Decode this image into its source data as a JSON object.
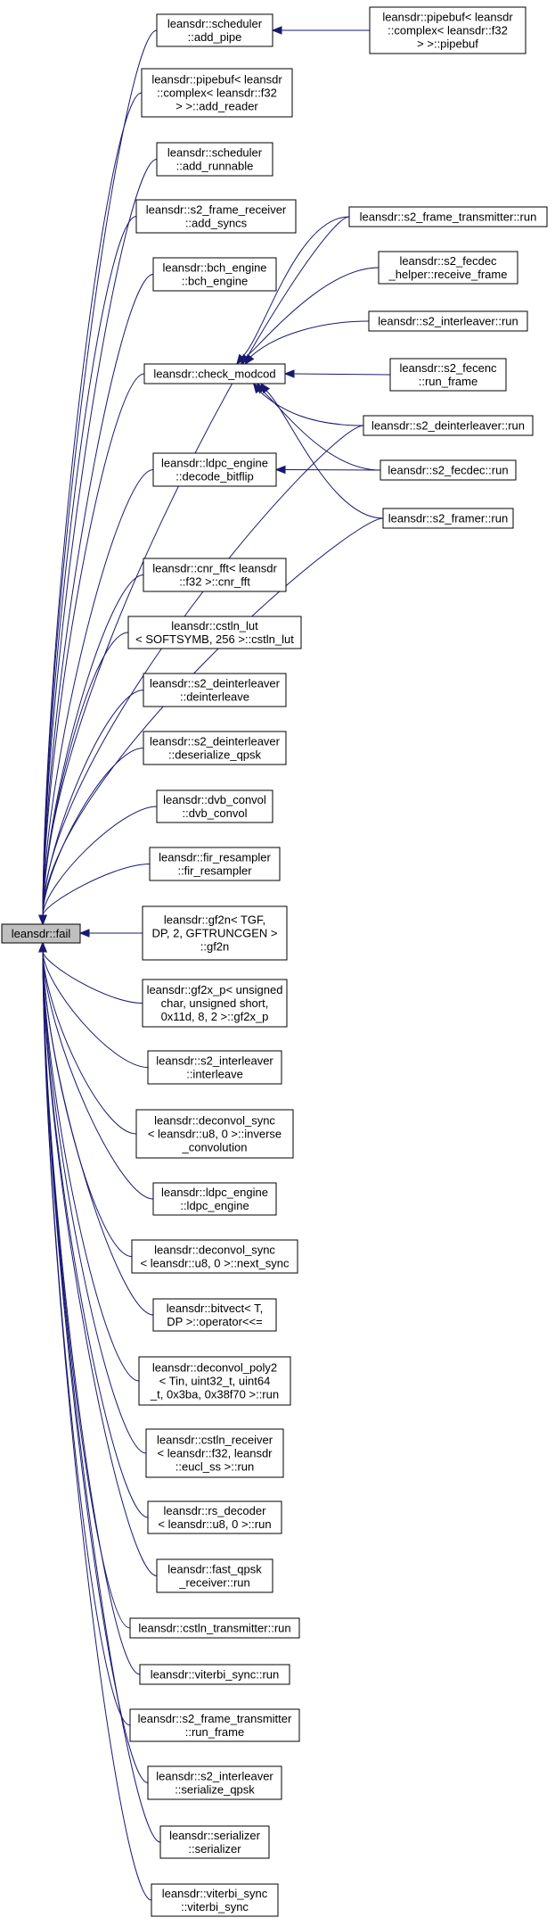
{
  "graph": {
    "root": {
      "id": "fail",
      "label": [
        "leansdr::fail"
      ]
    },
    "nodes": [
      {
        "id": "add_pipe",
        "label": [
          "leansdr::scheduler",
          "::add_pipe"
        ]
      },
      {
        "id": "pipebuf_pipebuf",
        "label": [
          "leansdr::pipebuf< leansdr",
          "::complex< leansdr::f32",
          "> >::pipebuf"
        ]
      },
      {
        "id": "add_reader",
        "label": [
          "leansdr::pipebuf< leansdr",
          "::complex< leansdr::f32",
          "> >::add_reader"
        ]
      },
      {
        "id": "add_runnable",
        "label": [
          "leansdr::scheduler",
          "::add_runnable"
        ]
      },
      {
        "id": "add_syncs",
        "label": [
          "leansdr::s2_frame_receiver",
          "::add_syncs"
        ]
      },
      {
        "id": "s2ft_run",
        "label": [
          "leansdr::s2_frame_transmitter::run"
        ]
      },
      {
        "id": "bch_engine",
        "label": [
          "leansdr::bch_engine",
          "::bch_engine"
        ]
      },
      {
        "id": "s2_fecdec_helper",
        "label": [
          "leansdr::s2_fecdec",
          "_helper::receive_frame"
        ]
      },
      {
        "id": "s2_interleaver_run",
        "label": [
          "leansdr::s2_interleaver::run"
        ]
      },
      {
        "id": "check_modcod",
        "label": [
          "leansdr::check_modcod"
        ]
      },
      {
        "id": "s2_fecenc",
        "label": [
          "leansdr::s2_fecenc",
          "::run_frame"
        ]
      },
      {
        "id": "s2_deinterleaver_run",
        "label": [
          "leansdr::s2_deinterleaver::run"
        ]
      },
      {
        "id": "decode_bitflip",
        "label": [
          "leansdr::ldpc_engine",
          "::decode_bitflip"
        ]
      },
      {
        "id": "s2_fecdec_run",
        "label": [
          "leansdr::s2_fecdec::run"
        ]
      },
      {
        "id": "s2_framer_run",
        "label": [
          "leansdr::s2_framer::run"
        ]
      },
      {
        "id": "cnr_fft",
        "label": [
          "leansdr::cnr_fft< leansdr",
          "::f32 >::cnr_fft"
        ]
      },
      {
        "id": "cstln_lut",
        "label": [
          "leansdr::cstln_lut",
          "< SOFTSYMB, 256 >::cstln_lut"
        ]
      },
      {
        "id": "deinterleave",
        "label": [
          "leansdr::s2_deinterleaver",
          "::deinterleave"
        ]
      },
      {
        "id": "deserialize_qpsk",
        "label": [
          "leansdr::s2_deinterleaver",
          "::deserialize_qpsk"
        ]
      },
      {
        "id": "dvb_convol",
        "label": [
          "leansdr::dvb_convol",
          "::dvb_convol"
        ]
      },
      {
        "id": "fir_resampler",
        "label": [
          "leansdr::fir_resampler",
          "::fir_resampler"
        ]
      },
      {
        "id": "gf2n",
        "label": [
          "leansdr::gf2n< TGF,",
          "DP, 2, GFTRUNCGEN >",
          "::gf2n"
        ]
      },
      {
        "id": "gf2x_p",
        "label": [
          "leansdr::gf2x_p< unsigned",
          "char, unsigned short,",
          "0x11d, 8, 2 >::gf2x_p"
        ]
      },
      {
        "id": "interleave",
        "label": [
          "leansdr::s2_interleaver",
          "::interleave"
        ]
      },
      {
        "id": "inverse_convolution",
        "label": [
          "leansdr::deconvol_sync",
          "< leansdr::u8, 0 >::inverse",
          "_convolution"
        ]
      },
      {
        "id": "ldpc_engine",
        "label": [
          "leansdr::ldpc_engine",
          "::ldpc_engine"
        ]
      },
      {
        "id": "next_sync",
        "label": [
          "leansdr::deconvol_sync",
          "< leansdr::u8, 0 >::next_sync"
        ]
      },
      {
        "id": "bitvect_op",
        "label": [
          "leansdr::bitvect< T,",
          "DP >::operator<<="
        ]
      },
      {
        "id": "deconvol_poly2",
        "label": [
          "leansdr::deconvol_poly2",
          "< Tin, uint32_t, uint64",
          "_t, 0x3ba, 0x38f70 >::run"
        ]
      },
      {
        "id": "cstln_receiver",
        "label": [
          "leansdr::cstln_receiver",
          "< leansdr::f32, leansdr",
          "::eucl_ss >::run"
        ]
      },
      {
        "id": "rs_decoder",
        "label": [
          "leansdr::rs_decoder",
          "< leansdr::u8, 0 >::run"
        ]
      },
      {
        "id": "fast_qpsk",
        "label": [
          "leansdr::fast_qpsk",
          "_receiver::run"
        ]
      },
      {
        "id": "cstln_transmitter",
        "label": [
          "leansdr::cstln_transmitter::run"
        ]
      },
      {
        "id": "viterbi_sync_run",
        "label": [
          "leansdr::viterbi_sync::run"
        ]
      },
      {
        "id": "run_frame",
        "label": [
          "leansdr::s2_frame_transmitter",
          "::run_frame"
        ]
      },
      {
        "id": "serialize_qpsk",
        "label": [
          "leansdr::s2_interleaver",
          "::serialize_qpsk"
        ]
      },
      {
        "id": "serializer",
        "label": [
          "leansdr::serializer",
          "::serializer"
        ]
      },
      {
        "id": "viterbi_sync",
        "label": [
          "leansdr::viterbi_sync",
          "::viterbi_sync"
        ]
      }
    ],
    "edges": [
      {
        "from": "add_pipe",
        "to": "fail"
      },
      {
        "from": "add_reader",
        "to": "fail"
      },
      {
        "from": "add_runnable",
        "to": "fail"
      },
      {
        "from": "add_syncs",
        "to": "fail"
      },
      {
        "from": "bch_engine",
        "to": "fail"
      },
      {
        "from": "check_modcod",
        "to": "fail"
      },
      {
        "from": "decode_bitflip",
        "to": "fail"
      },
      {
        "from": "s2ft_run",
        "to": "fail"
      },
      {
        "from": "s2_deinterleaver_run",
        "to": "fail"
      },
      {
        "from": "s2_framer_run",
        "to": "fail"
      },
      {
        "from": "cnr_fft",
        "to": "fail"
      },
      {
        "from": "cstln_lut",
        "to": "fail"
      },
      {
        "from": "deinterleave",
        "to": "fail"
      },
      {
        "from": "deserialize_qpsk",
        "to": "fail"
      },
      {
        "from": "dvb_convol",
        "to": "fail"
      },
      {
        "from": "fir_resampler",
        "to": "fail"
      },
      {
        "from": "gf2n",
        "to": "fail"
      },
      {
        "from": "gf2x_p",
        "to": "fail"
      },
      {
        "from": "interleave",
        "to": "fail"
      },
      {
        "from": "inverse_convolution",
        "to": "fail"
      },
      {
        "from": "ldpc_engine",
        "to": "fail"
      },
      {
        "from": "next_sync",
        "to": "fail"
      },
      {
        "from": "bitvect_op",
        "to": "fail"
      },
      {
        "from": "deconvol_poly2",
        "to": "fail"
      },
      {
        "from": "cstln_receiver",
        "to": "fail"
      },
      {
        "from": "rs_decoder",
        "to": "fail"
      },
      {
        "from": "fast_qpsk",
        "to": "fail"
      },
      {
        "from": "cstln_transmitter",
        "to": "fail"
      },
      {
        "from": "viterbi_sync_run",
        "to": "fail"
      },
      {
        "from": "run_frame",
        "to": "fail"
      },
      {
        "from": "serialize_qpsk",
        "to": "fail"
      },
      {
        "from": "serializer",
        "to": "fail"
      },
      {
        "from": "viterbi_sync",
        "to": "fail"
      },
      {
        "from": "pipebuf_pipebuf",
        "to": "add_pipe"
      },
      {
        "from": "s2ft_run",
        "to": "check_modcod"
      },
      {
        "from": "s2_fecdec_helper",
        "to": "check_modcod"
      },
      {
        "from": "s2_interleaver_run",
        "to": "check_modcod"
      },
      {
        "from": "s2_fecenc",
        "to": "check_modcod"
      },
      {
        "from": "s2_deinterleaver_run",
        "to": "check_modcod"
      },
      {
        "from": "s2_fecdec_run",
        "to": "check_modcod"
      },
      {
        "from": "s2_framer_run",
        "to": "check_modcod"
      },
      {
        "from": "s2_fecdec_run",
        "to": "decode_bitflip"
      }
    ]
  }
}
